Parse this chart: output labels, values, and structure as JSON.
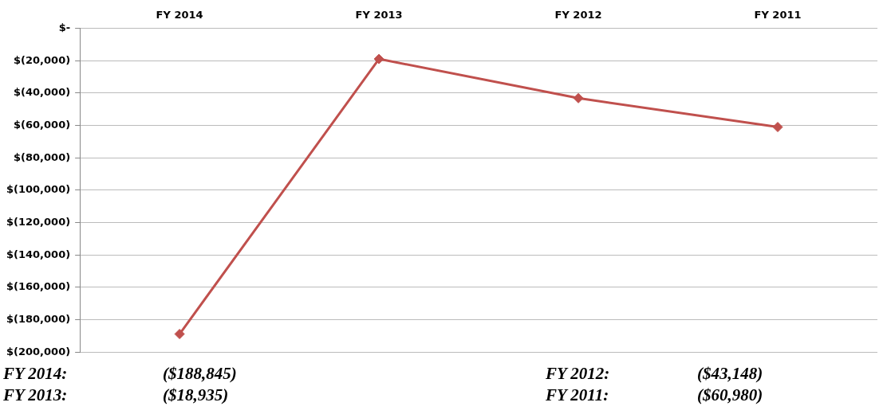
{
  "chart_data": {
    "type": "line",
    "categories": [
      "FY 2014",
      "FY 2013",
      "FY 2012",
      "FY 2011"
    ],
    "series": [
      {
        "color": "#c0504d",
        "values": [
          -188845,
          -18935,
          -43148,
          -60980
        ]
      }
    ],
    "ylim": [
      -200000,
      0
    ],
    "yticks": [
      {
        "value": 0,
        "label": "$-"
      },
      {
        "value": -20000,
        "label": "$(20,000)"
      },
      {
        "value": -40000,
        "label": "$(40,000)"
      },
      {
        "value": -60000,
        "label": "$(60,000)"
      },
      {
        "value": -80000,
        "label": "$(80,000)"
      },
      {
        "value": -100000,
        "label": "$(100,000)"
      },
      {
        "value": -120000,
        "label": "$(120,000)"
      },
      {
        "value": -140000,
        "label": "$(140,000)"
      },
      {
        "value": -160000,
        "label": "$(160,000)"
      },
      {
        "value": -180000,
        "label": "$(180,000)"
      },
      {
        "value": -200000,
        "label": "$(200,000)"
      }
    ],
    "grid": "y",
    "marker": "diamond",
    "line_style": "solid",
    "legend": false,
    "annotations": [
      "FY 2014:",
      "($188,845)",
      "FY 2012:",
      "($43,148)",
      "FY 2013:",
      "($18,935)",
      "FY 2011:",
      "($60,980)"
    ]
  }
}
